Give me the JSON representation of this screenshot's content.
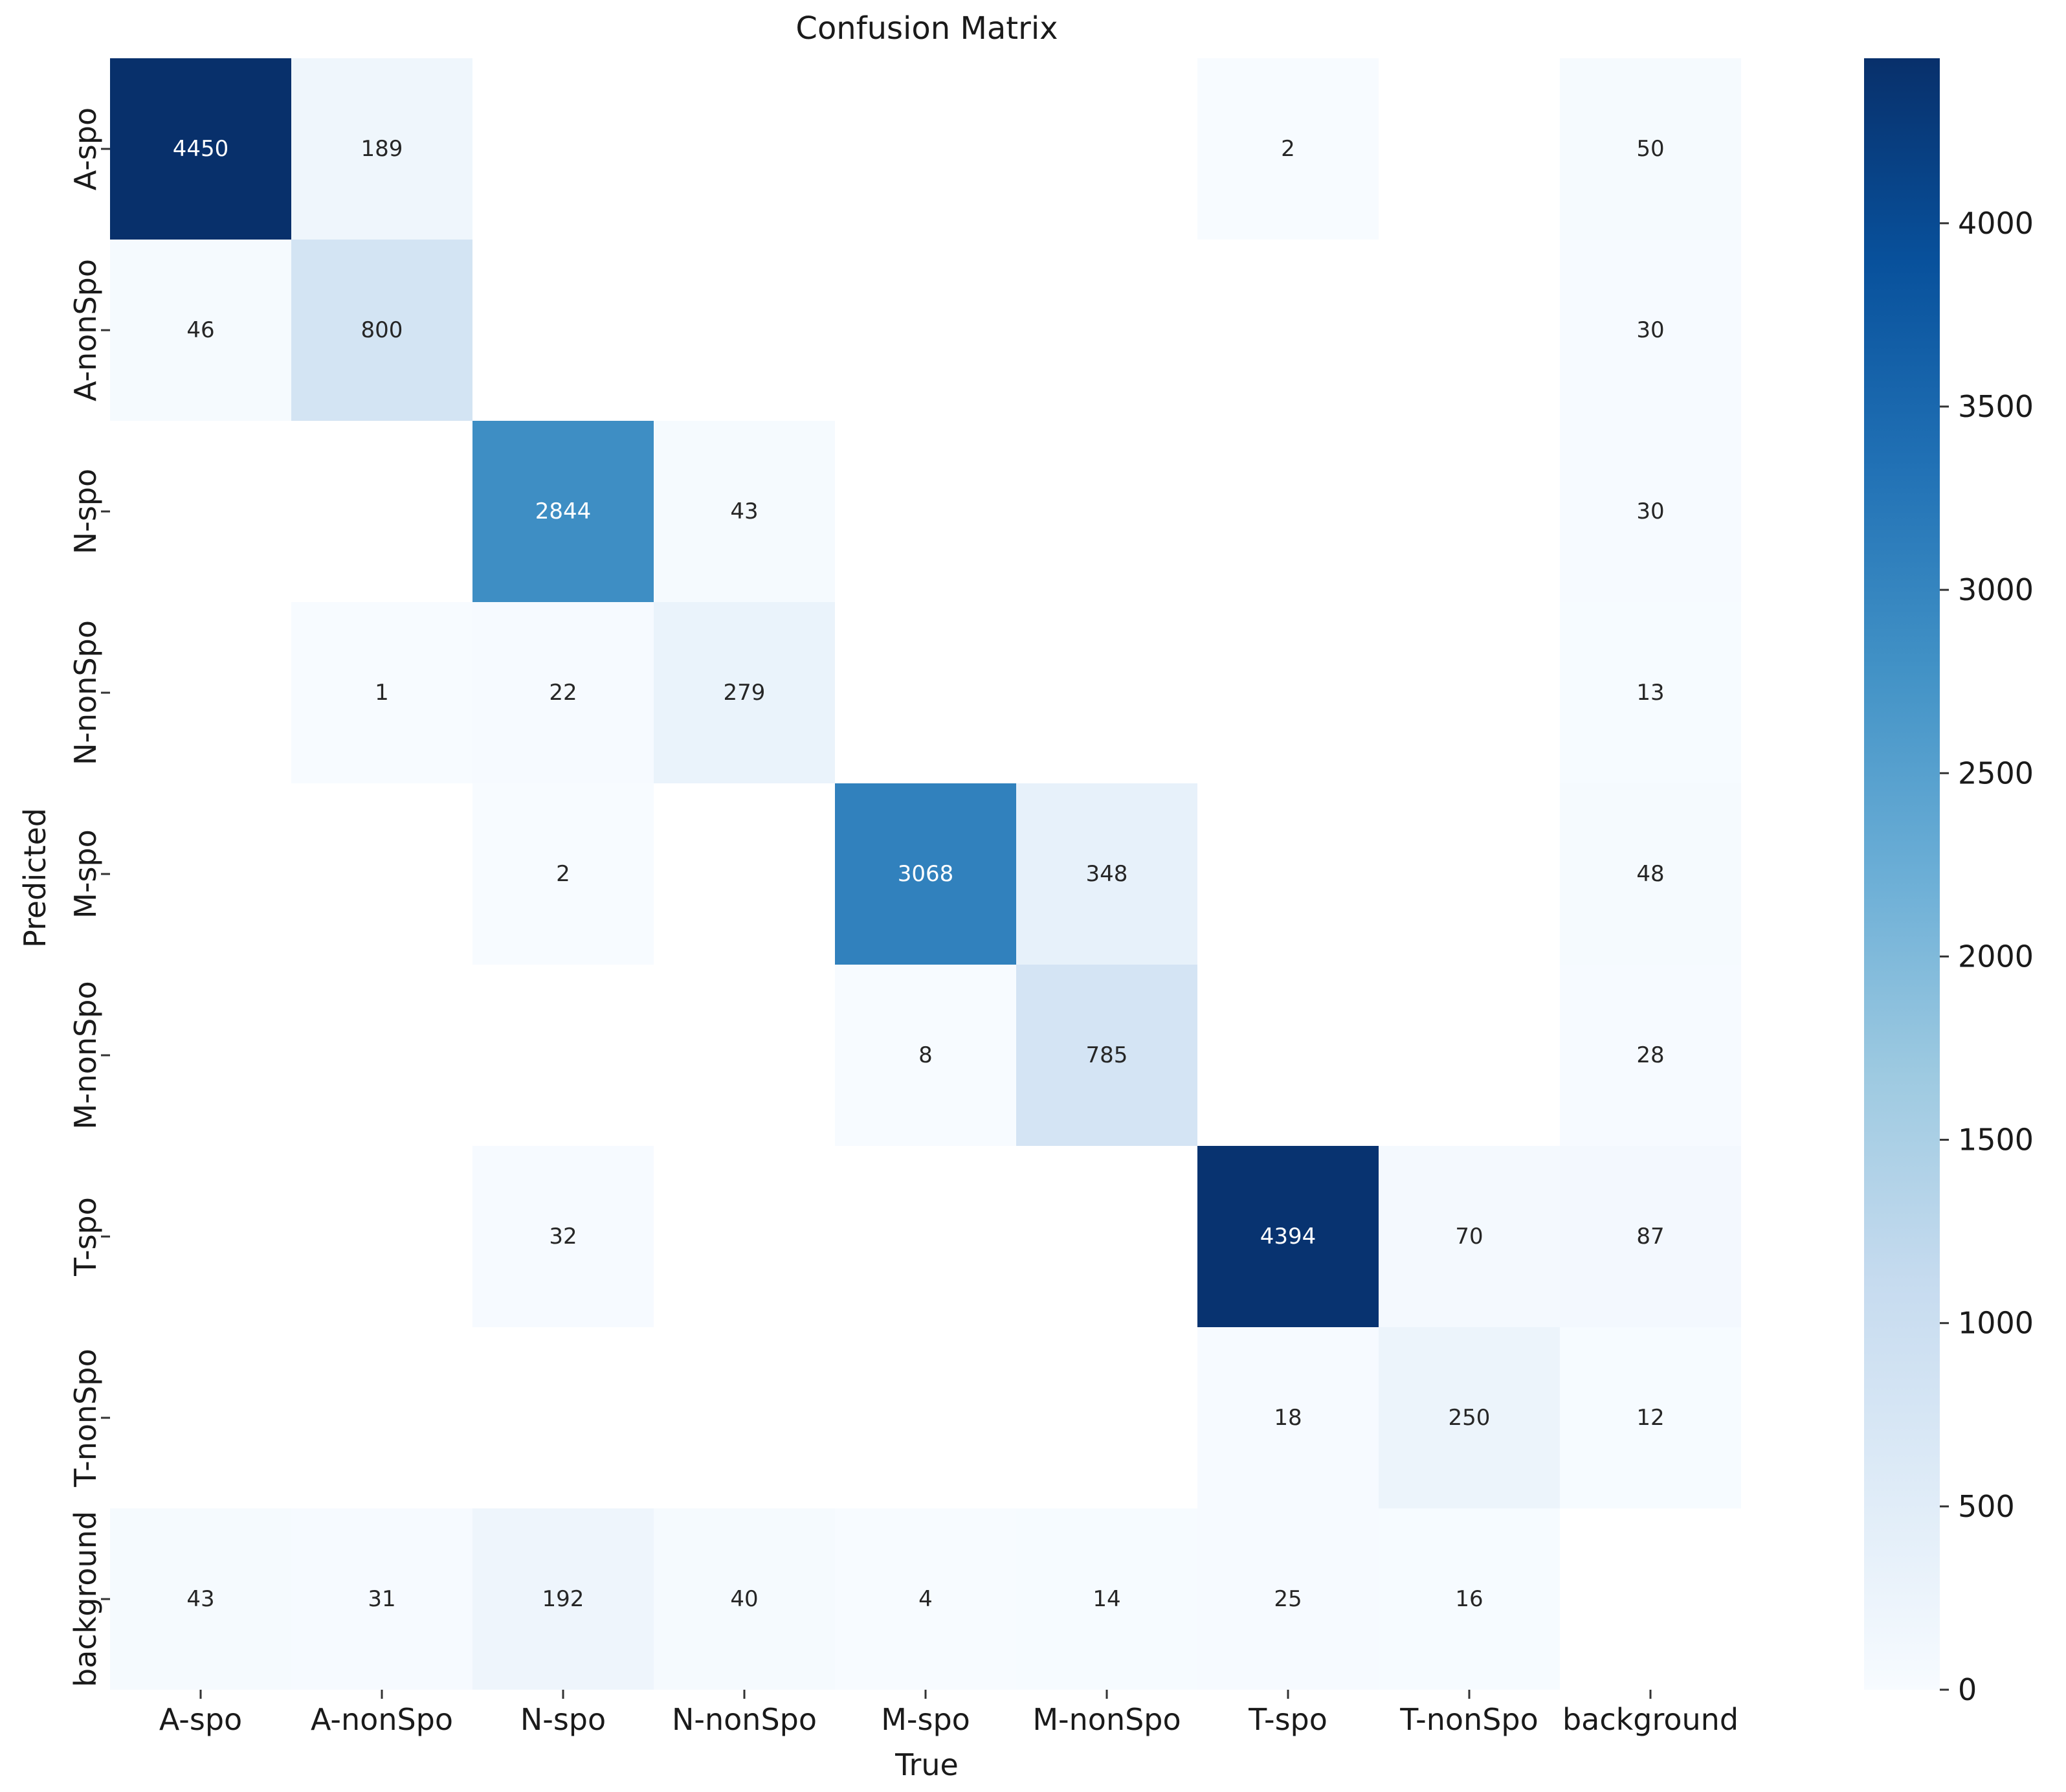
{
  "chart_data": {
    "type": "heatmap",
    "title": "Confusion Matrix",
    "xlabel": "True",
    "ylabel": "Predicted",
    "x_categories": [
      "A-spo",
      "A-nonSpo",
      "N-spo",
      "N-nonSpo",
      "M-spo",
      "M-nonSpo",
      "T-spo",
      "T-nonSpo",
      "background"
    ],
    "y_categories": [
      "A-spo",
      "A-nonSpo",
      "N-spo",
      "N-nonSpo",
      "M-spo",
      "M-nonSpo",
      "T-spo",
      "T-nonSpo",
      "background"
    ],
    "values": [
      [
        4450,
        189,
        null,
        null,
        null,
        null,
        2,
        null,
        50
      ],
      [
        46,
        800,
        null,
        null,
        null,
        null,
        null,
        null,
        30
      ],
      [
        null,
        null,
        2844,
        43,
        null,
        null,
        null,
        null,
        30
      ],
      [
        null,
        1,
        22,
        279,
        null,
        null,
        null,
        null,
        13
      ],
      [
        null,
        null,
        2,
        null,
        3068,
        348,
        null,
        null,
        48
      ],
      [
        null,
        null,
        null,
        null,
        8,
        785,
        null,
        null,
        28
      ],
      [
        null,
        null,
        32,
        null,
        null,
        null,
        4394,
        70,
        87
      ],
      [
        null,
        null,
        null,
        null,
        null,
        null,
        18,
        250,
        12
      ],
      [
        43,
        31,
        192,
        40,
        4,
        14,
        25,
        16,
        null
      ]
    ],
    "colormap": "Blues",
    "color_range": [
      0,
      4450
    ],
    "colorbar_ticks": [
      0,
      500,
      1000,
      1500,
      2000,
      2500,
      3000,
      3500,
      4000
    ],
    "colorbar_tick_labels": [
      "0",
      "500",
      "1000",
      "1500",
      "2000",
      "2500",
      "3000",
      "3500",
      "4000"
    ],
    "legend": "colorbar-right"
  }
}
